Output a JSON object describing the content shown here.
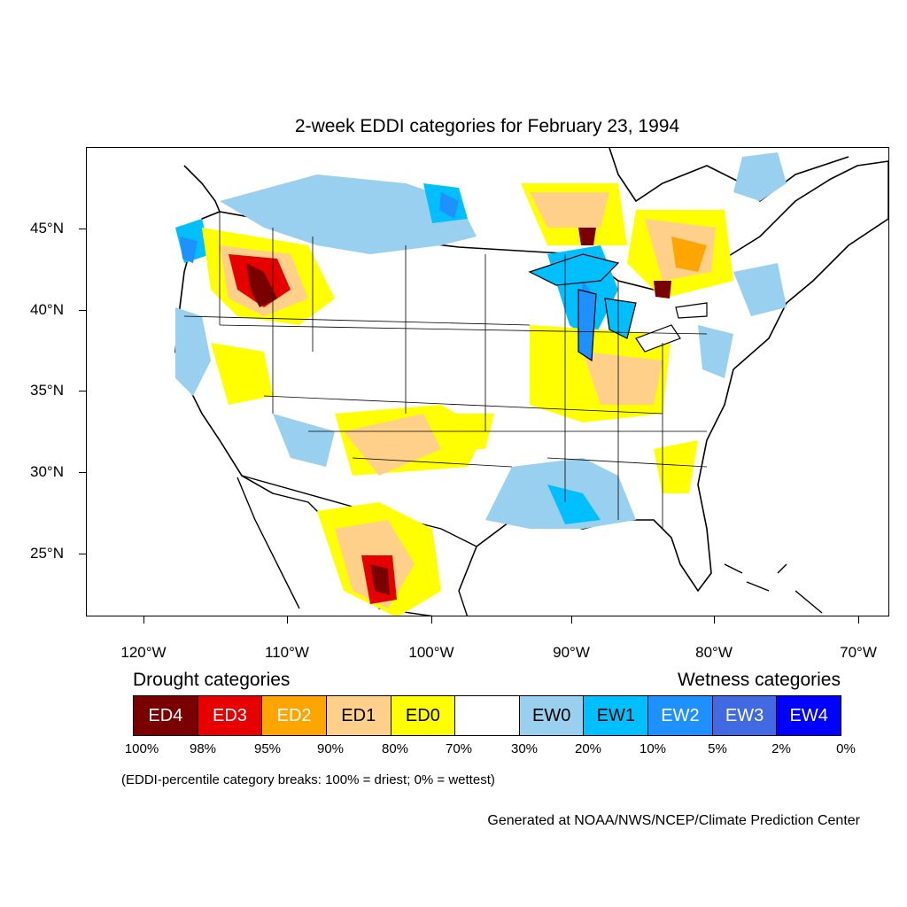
{
  "title": "2-week EDDI categories for February 23, 1994",
  "axes": {
    "lat_labels": [
      "45°N",
      "40°N",
      "35°N",
      "30°N",
      "25°N"
    ],
    "lon_labels": [
      "120°W",
      "110°W",
      "100°W",
      "90°W",
      "80°W",
      "70°W"
    ]
  },
  "legend": {
    "drought_heading": "Drought categories",
    "wetness_heading": "Wetness categories",
    "categories": [
      {
        "label": "ED4",
        "color": "#7a0000",
        "text_color": "#ffffff"
      },
      {
        "label": "ED3",
        "color": "#e60000",
        "text_color": "#ffffff"
      },
      {
        "label": "ED2",
        "color": "#ffa500",
        "text_color": "#ffffff"
      },
      {
        "label": "ED1",
        "color": "#ffd08a",
        "text_color": "#000000"
      },
      {
        "label": "ED0",
        "color": "#ffff00",
        "text_color": "#000000"
      },
      {
        "label": "",
        "color": "#ffffff",
        "text_color": "#000000"
      },
      {
        "label": "EW0",
        "color": "#9ad0ef",
        "text_color": "#000000"
      },
      {
        "label": "EW1",
        "color": "#00bfff",
        "text_color": "#000000"
      },
      {
        "label": "EW2",
        "color": "#1e90ff",
        "text_color": "#ffffff"
      },
      {
        "label": "EW3",
        "color": "#4169e1",
        "text_color": "#ffffff"
      },
      {
        "label": "EW4",
        "color": "#0000ff",
        "text_color": "#ffffff"
      }
    ],
    "breaks": [
      "100%",
      "98%",
      "95%",
      "90%",
      "80%",
      "70%",
      "30%",
      "20%",
      "10%",
      "5%",
      "2%",
      "0%"
    ]
  },
  "note": "(EDDI-percentile category breaks: 100% = driest; 0% = wettest)",
  "credit": "Generated at NOAA/NWS/NCEP/Climate Prediction Center"
}
